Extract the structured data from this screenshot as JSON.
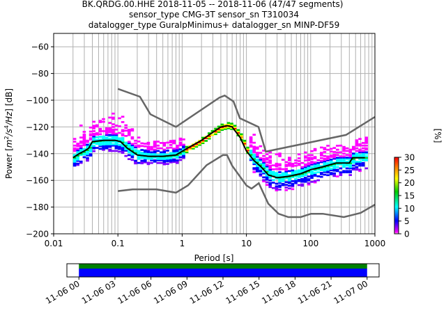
{
  "title": {
    "line1": "BK.QRDG.00.HHE   2018-11-05 -- 2018-11-06  (47/47 segments)",
    "line2": "sensor_type CMG-3T sensor_sn T310034",
    "line3": "datalogger_type GuralpMinimus+ datalogger_sn MINP-DF59"
  },
  "chart_data": [
    {
      "type": "heatmap",
      "title": "BK.QRDG.00.HHE   2018-11-05 -- 2018-11-06  (47/47 segments)",
      "xlabel": "Period [s]",
      "ylabel_parts": [
        "Power [",
        "m",
        "2",
        "/",
        "s",
        "4",
        "/",
        "Hz",
        "] [dB]"
      ],
      "xscale": "log",
      "xlim": [
        0.01,
        1000
      ],
      "ylim": [
        -200,
        -50
      ],
      "grid": true,
      "x_ticks": [
        {
          "value": 0.01,
          "label": "0.01"
        },
        {
          "value": 0.1,
          "label": "0.1"
        },
        {
          "value": 1,
          "label": "1"
        },
        {
          "value": 10,
          "label": "10"
        },
        {
          "value": 100,
          "label": "100"
        },
        {
          "value": 1000,
          "label": "1000"
        }
      ],
      "y_ticks": [
        {
          "value": -60,
          "label": "−60"
        },
        {
          "value": -80,
          "label": "−80"
        },
        {
          "value": -100,
          "label": "−100"
        },
        {
          "value": -120,
          "label": "−120"
        },
        {
          "value": -140,
          "label": "−140"
        },
        {
          "value": -160,
          "label": "−160"
        },
        {
          "value": -180,
          "label": "−180"
        },
        {
          "value": -200,
          "label": "−200"
        }
      ],
      "noise_models": {
        "high": {
          "name": "NHNM",
          "period": [
            0.1,
            0.22,
            0.32,
            0.8,
            3.8,
            4.6,
            6.3,
            7.9,
            15.4,
            20,
            354.8,
            1000
          ],
          "db": [
            -91.5,
            -97.4,
            -110.5,
            -120,
            -98,
            -96.5,
            -101,
            -113.5,
            -120,
            -138.5,
            -126,
            -112.5
          ]
        },
        "low": {
          "name": "NLNM",
          "period": [
            0.1,
            0.17,
            0.4,
            0.8,
            1.24,
            2.4,
            4.3,
            5,
            6,
            10,
            12,
            15.6,
            21.9,
            31.6,
            45,
            70,
            101,
            154,
            328,
            600,
            1000
          ],
          "db": [
            -168,
            -166.7,
            -166.7,
            -169.2,
            -163.7,
            -148.6,
            -141.1,
            -141.1,
            -149,
            -163.8,
            -166.2,
            -162.1,
            -177.5,
            -185,
            -187.5,
            -187.5,
            -185,
            -185,
            -187.5,
            -184.4,
            -178.2
          ]
        }
      },
      "mean_curve": {
        "period": [
          0.02,
          0.025,
          0.03,
          0.035,
          0.04,
          0.06,
          0.09,
          0.11,
          0.14,
          0.2,
          0.3,
          0.5,
          0.8,
          1.2,
          2,
          3,
          4,
          5,
          6,
          8,
          10,
          13,
          17,
          22,
          30,
          45,
          70,
          100,
          150,
          250,
          400,
          450,
          700
        ],
        "db": [
          -143,
          -140,
          -138,
          -136,
          -131,
          -130,
          -130,
          -131,
          -136,
          -141,
          -142,
          -142,
          -141,
          -136,
          -130,
          -124,
          -120,
          -119,
          -120,
          -128,
          -138,
          -145,
          -150,
          -156,
          -158,
          -157,
          -155,
          -152,
          -150,
          -147,
          -147,
          -143,
          -143
        ]
      },
      "colorbar": {
        "label": "[%]",
        "ticks": [
          {
            "value": 0,
            "label": "0"
          },
          {
            "value": 5,
            "label": "5"
          },
          {
            "value": 10,
            "label": "10"
          },
          {
            "value": 15,
            "label": "15"
          },
          {
            "value": 20,
            "label": "20"
          },
          {
            "value": 25,
            "label": "25"
          },
          {
            "value": 30,
            "label": "30"
          }
        ],
        "range": [
          0,
          30
        ]
      }
    },
    {
      "type": "timeline",
      "xlim_hours": [
        -1,
        25
      ],
      "data_range_hours": [
        0,
        24
      ],
      "colors": {
        "upper": "#008000",
        "lower": "#0000ff"
      },
      "x_ticks": [
        {
          "value": 0,
          "label": "11-06 00"
        },
        {
          "value": 3,
          "label": "11-06 03"
        },
        {
          "value": 6,
          "label": "11-06 06"
        },
        {
          "value": 9,
          "label": "11-06 09"
        },
        {
          "value": 12,
          "label": "11-06 12"
        },
        {
          "value": 15,
          "label": "11-06 15"
        },
        {
          "value": 18,
          "label": "11-06 18"
        },
        {
          "value": 21,
          "label": "11-06 21"
        },
        {
          "value": 24,
          "label": "11-07 00"
        }
      ]
    }
  ]
}
